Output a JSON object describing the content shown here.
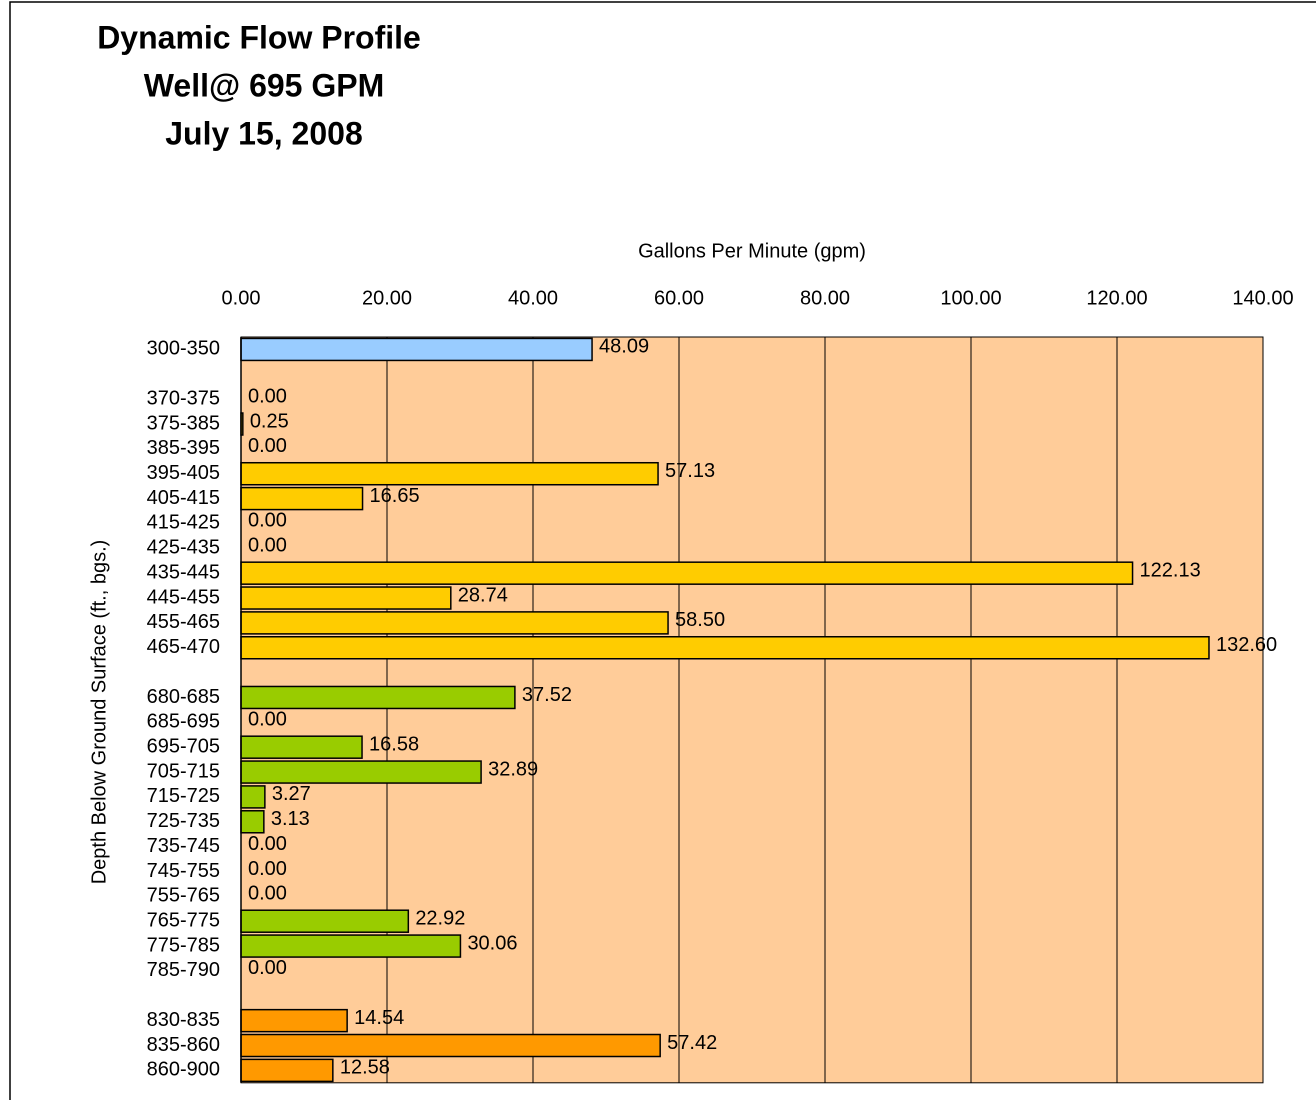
{
  "chart_data": {
    "type": "bar",
    "orientation": "horizontal",
    "title": [
      "Dynamic Flow Profile",
      "Well@ 695 GPM",
      "July 15, 2008"
    ],
    "x_label": "Gallons Per Minute (gpm)",
    "y_label": "Depth Below Ground Surface (ft., bgs.)",
    "categories": [
      "300-350",
      null,
      "370-375",
      "375-385",
      "385-395",
      "395-405",
      "405-415",
      "415-425",
      "425-435",
      "435-445",
      "445-455",
      "455-465",
      "465-470",
      null,
      "680-685",
      "685-695",
      "695-705",
      "705-715",
      "715-725",
      "725-735",
      "735-745",
      "745-755",
      "755-765",
      "765-775",
      "775-785",
      "785-790",
      null,
      "830-835",
      "835-860",
      "860-900"
    ],
    "values": [
      48.09,
      null,
      0,
      0.25,
      0,
      57.13,
      16.65,
      0,
      0,
      122.13,
      28.74,
      58.5,
      132.6,
      null,
      37.52,
      0,
      16.58,
      32.89,
      3.27,
      3.13,
      0,
      0,
      0,
      22.92,
      30.06,
      0,
      null,
      14.54,
      57.42,
      12.58
    ],
    "value_labels": [
      "48.09",
      null,
      "0.00",
      "0.25",
      "0.00",
      "57.13",
      "16.65",
      "0.00",
      "0.00",
      "122.13",
      "28.74",
      "58.50",
      "132.60",
      null,
      "37.52",
      "0.00",
      "16.58",
      "32.89",
      "3.27",
      "3.13",
      "0.00",
      "0.00",
      "0.00",
      "22.92",
      "30.06",
      "0.00",
      null,
      "14.54",
      "57.42",
      "12.58"
    ],
    "colors": [
      "#99ccff",
      null,
      "#ffcc00",
      "#ffcc00",
      "#ffcc00",
      "#ffcc00",
      "#ffcc00",
      "#ffcc00",
      "#ffcc00",
      "#ffcc00",
      "#ffcc00",
      "#ffcc00",
      "#ffcc00",
      null,
      "#99cc00",
      "#99cc00",
      "#99cc00",
      "#99cc00",
      "#99cc00",
      "#99cc00",
      "#99cc00",
      "#99cc00",
      "#99cc00",
      "#99cc00",
      "#99cc00",
      "#99cc00",
      null,
      "#ff9900",
      "#ff9900",
      "#ff9900"
    ],
    "xlim": [
      0,
      140
    ],
    "xticks": [
      {
        "value": 0,
        "label": "0.00"
      },
      {
        "value": 20,
        "label": "20.00"
      },
      {
        "value": 40,
        "label": "40.00"
      },
      {
        "value": 60,
        "label": "60.00"
      },
      {
        "value": 80,
        "label": "80.00"
      },
      {
        "value": 100,
        "label": "100.00"
      },
      {
        "value": 120,
        "label": "120.00"
      },
      {
        "value": 140,
        "label": "140.00"
      }
    ],
    "grid": true,
    "plot_background": "#ffcc99"
  }
}
